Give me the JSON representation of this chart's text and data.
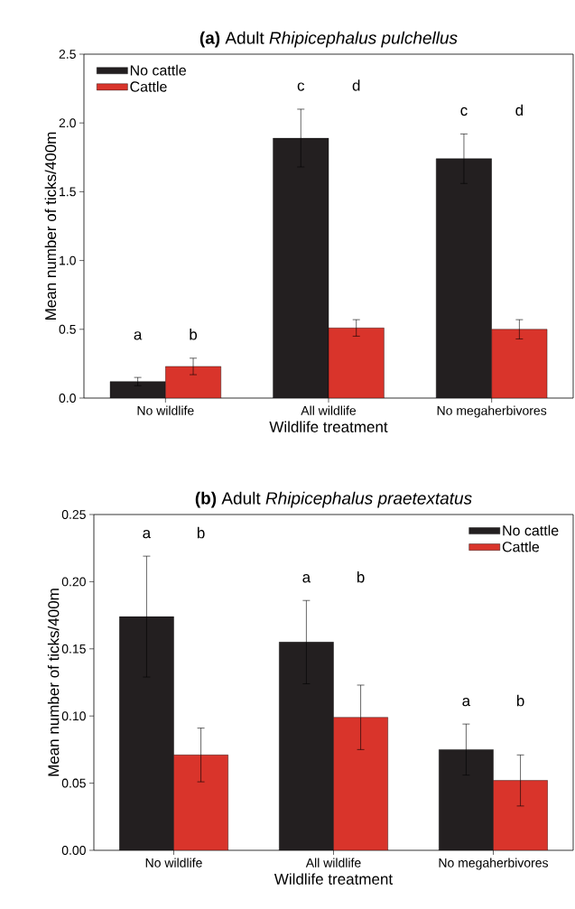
{
  "chart_data": [
    {
      "type": "bar",
      "title": "**(a)** Adult *Rhipicephalus pulchellus*",
      "xlabel": "Wildlife treatment",
      "ylabel": "Mean number of ticks/400m",
      "categories": [
        "No wildlife",
        "All wildlife",
        "No megaherbivores"
      ],
      "series": [
        {
          "name": "No cattle",
          "color": "#231f20",
          "values": [
            0.12,
            1.89,
            1.74
          ],
          "errors": [
            0.03,
            0.21,
            0.18
          ]
        },
        {
          "name": "Cattle",
          "color": "#d9342b",
          "values": [
            0.23,
            0.51,
            0.5
          ],
          "errors": [
            0.06,
            0.06,
            0.07
          ]
        }
      ],
      "annotations": [
        "a",
        "b",
        "c",
        "d",
        "c",
        "d"
      ],
      "ylim": [
        0,
        2.5
      ],
      "yticks": [
        {
          "value": 0,
          "label": "0.0"
        },
        {
          "value": 0.5,
          "label": "0.5"
        },
        {
          "value": 1,
          "label": "1.0"
        },
        {
          "value": 1.5,
          "label": "1.5"
        },
        {
          "value": 2,
          "label": "2.0"
        },
        {
          "value": 2.5,
          "label": "2.5"
        }
      ],
      "legend": "top left"
    },
    {
      "type": "bar",
      "title": "**(b)** Adult *Rhipicephalus praetextatus*",
      "xlabel": "Wildlife treatment",
      "ylabel": "Mean number of ticks/400m",
      "categories": [
        "No wildlife",
        "All wildlife",
        "No megaherbivores"
      ],
      "series": [
        {
          "name": "No cattle",
          "color": "#231f20",
          "values": [
            0.174,
            0.155,
            0.075
          ],
          "errors": [
            0.045,
            0.031,
            0.019
          ]
        },
        {
          "name": "Cattle",
          "color": "#d9342b",
          "values": [
            0.071,
            0.099,
            0.052
          ],
          "errors": [
            0.02,
            0.024,
            0.019
          ]
        }
      ],
      "annotations": [
        "a",
        "b",
        "a",
        "b",
        "a",
        "b"
      ],
      "ylim": [
        0,
        0.25
      ],
      "yticks": [
        {
          "value": 0,
          "label": "0.00"
        },
        {
          "value": 0.05,
          "label": "0.05"
        },
        {
          "value": 0.1,
          "label": "0.10"
        },
        {
          "value": 0.15,
          "label": "0.15"
        },
        {
          "value": 0.2,
          "label": "0.20"
        },
        {
          "value": 0.25,
          "label": "0.25"
        }
      ],
      "legend": "top right"
    }
  ]
}
